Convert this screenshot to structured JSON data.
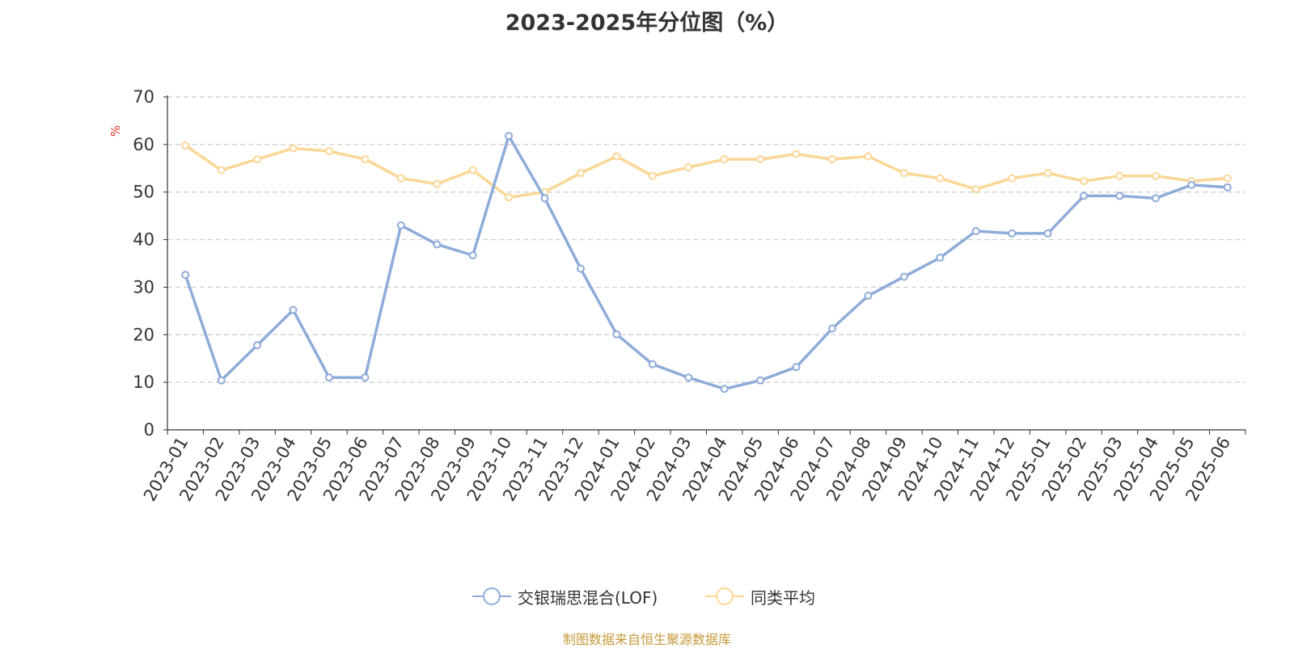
{
  "chart_data": {
    "type": "line",
    "title": "2023-2025年分位图（%）",
    "ylabel": "%",
    "xlabel": "",
    "ylim": [
      0,
      70
    ],
    "yticks": [
      0,
      10,
      20,
      30,
      40,
      50,
      60,
      70
    ],
    "grid": true,
    "legend_position": "bottom-center",
    "categories": [
      "2023-01",
      "2023-02",
      "2023-03",
      "2023-04",
      "2023-05",
      "2023-06",
      "2023-07",
      "2023-08",
      "2023-09",
      "2023-10",
      "2023-11",
      "2023-12",
      "2024-01",
      "2024-02",
      "2024-03",
      "2024-04",
      "2024-05",
      "2024-06",
      "2024-07",
      "2024-08",
      "2024-09",
      "2024-10",
      "2024-11",
      "2024-12",
      "2025-01",
      "2025-02",
      "2025-03",
      "2025-04",
      "2025-05",
      "2025-06"
    ],
    "series": [
      {
        "name": "交银瑞思混合(LOF)",
        "color": "#8eacd9",
        "values": [
          32.6,
          10.4,
          17.8,
          25.2,
          11.0,
          11.0,
          43.0,
          39.0,
          36.7,
          61.8,
          48.7,
          33.9,
          20.1,
          13.8,
          11.0,
          8.6,
          10.4,
          13.2,
          21.3,
          28.2,
          32.2,
          36.2,
          41.8,
          41.3,
          41.3,
          49.2,
          49.2,
          48.7,
          51.5,
          51.0
        ]
      },
      {
        "name": "同类平均",
        "color": "#fad795",
        "values": [
          59.8,
          54.6,
          56.9,
          59.2,
          58.6,
          56.9,
          52.9,
          51.7,
          54.6,
          48.9,
          50.0,
          54.0,
          57.5,
          53.4,
          55.2,
          56.9,
          56.9,
          58.0,
          56.9,
          57.5,
          54.0,
          52.9,
          50.6,
          52.9,
          54.0,
          52.3,
          53.4,
          53.4,
          52.3,
          52.9
        ]
      }
    ]
  },
  "source_text": "制图数据来自恒生聚源数据库"
}
